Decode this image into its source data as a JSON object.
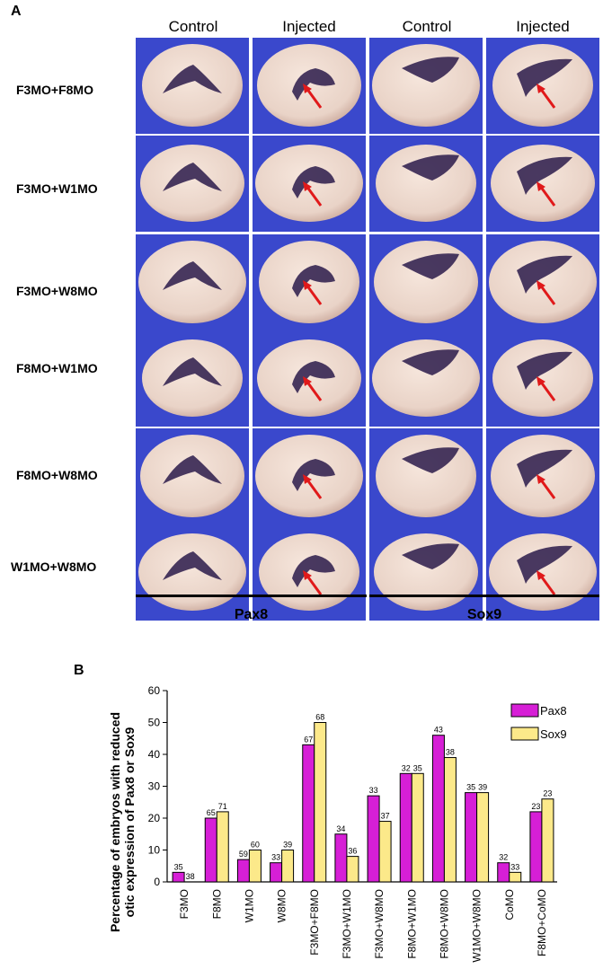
{
  "panel_a": {
    "letter": "A",
    "column_headers": [
      "Control",
      "Injected",
      "Control",
      "Injected"
    ],
    "row_labels": [
      "F3MO+F8MO",
      "F3MO+W1MO",
      "F3MO+W8MO",
      "F8MO+W1MO",
      "F8MO+W8MO",
      "W1MO+W8MO"
    ],
    "group_labels": [
      "Pax8",
      "Sox9"
    ],
    "colors": {
      "background_blue": "#3a48cc",
      "embryo": "#e9d3c7",
      "stain": "#2a1a4a",
      "arrow": "#e0191a"
    }
  },
  "panel_b": {
    "letter": "B"
  },
  "chart_data": {
    "type": "bar",
    "ylabel": "Percentage of embryos with reduced otic expression of Pax8 or Sox9",
    "ylim": [
      0,
      60
    ],
    "yticks": [
      0,
      10,
      20,
      30,
      40,
      50,
      60
    ],
    "categories": [
      "F3MO",
      "F8MO",
      "W1MO",
      "W8MO",
      "F3MO+F8MO",
      "F3MO+W1MO",
      "F3MO+W8MO",
      "F8MO+W1MO",
      "F8MO+W8MO",
      "W1MO+W8MO",
      "CoMO",
      "F8MO+CoMO"
    ],
    "legend_position": "top-right",
    "grid": false,
    "series": [
      {
        "name": "Pax8",
        "color": "#d61fd6",
        "values": [
          3,
          20,
          7,
          6,
          43,
          15,
          27,
          34,
          46,
          28,
          6,
          22
        ],
        "labels": [
          "35",
          "65",
          "59",
          "33",
          "67",
          "34",
          "33",
          "32",
          "43",
          "35",
          "32",
          "23"
        ]
      },
      {
        "name": "Sox9",
        "color": "#fce98a",
        "values": [
          0,
          22,
          10,
          10,
          50,
          8,
          19,
          34,
          39,
          28,
          3,
          26
        ],
        "labels": [
          "38",
          "71",
          "60",
          "39",
          "68",
          "36",
          "37",
          "35",
          "38",
          "39",
          "33",
          "23"
        ]
      }
    ]
  }
}
